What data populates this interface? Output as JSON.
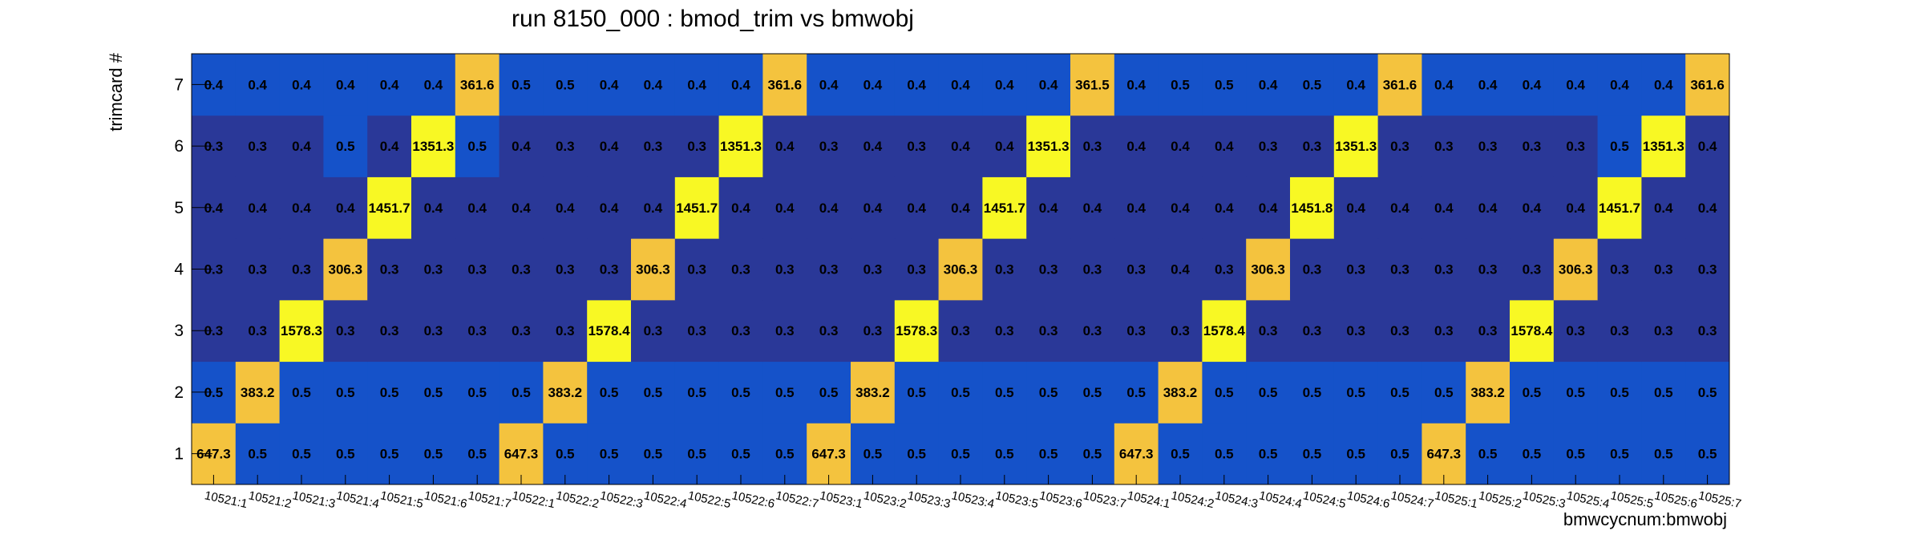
{
  "chart_data": {
    "type": "heatmap",
    "title": "run 8150_000 : bmod_trim vs bmwobj",
    "xlabel": "bmwcycnum:bmwobj",
    "ylabel": "trimcard #",
    "x_categories": [
      "10521:1",
      "10521:2",
      "10521:3",
      "10521:4",
      "10521:5",
      "10521:6",
      "10521:7",
      "10522:1",
      "10522:2",
      "10522:3",
      "10522:4",
      "10522:5",
      "10522:6",
      "10522:7",
      "10523:1",
      "10523:2",
      "10523:3",
      "10523:4",
      "10523:5",
      "10523:6",
      "10523:7",
      "10524:1",
      "10524:2",
      "10524:3",
      "10524:4",
      "10524:5",
      "10524:6",
      "10524:7",
      "10525:1",
      "10525:2",
      "10525:3",
      "10525:4",
      "10525:5",
      "10525:6",
      "10525:7"
    ],
    "y_categories": [
      "1",
      "2",
      "3",
      "4",
      "5",
      "6",
      "7"
    ],
    "values": [
      [
        "647.3",
        "0.5",
        "0.5",
        "0.5",
        "0.5",
        "0.5",
        "0.5",
        "647.3",
        "0.5",
        "0.5",
        "0.5",
        "0.5",
        "0.5",
        "0.5",
        "647.3",
        "0.5",
        "0.5",
        "0.5",
        "0.5",
        "0.5",
        "0.5",
        "647.3",
        "0.5",
        "0.5",
        "0.5",
        "0.5",
        "0.5",
        "0.5",
        "647.3",
        "0.5",
        "0.5",
        "0.5",
        "0.5",
        "0.5",
        "0.5"
      ],
      [
        "0.5",
        "383.2",
        "0.5",
        "0.5",
        "0.5",
        "0.5",
        "0.5",
        "0.5",
        "383.2",
        "0.5",
        "0.5",
        "0.5",
        "0.5",
        "0.5",
        "0.5",
        "383.2",
        "0.5",
        "0.5",
        "0.5",
        "0.5",
        "0.5",
        "0.5",
        "383.2",
        "0.5",
        "0.5",
        "0.5",
        "0.5",
        "0.5",
        "0.5",
        "383.2",
        "0.5",
        "0.5",
        "0.5",
        "0.5",
        "0.5"
      ],
      [
        "0.3",
        "0.3",
        "1578.3",
        "0.3",
        "0.3",
        "0.3",
        "0.3",
        "0.3",
        "0.3",
        "1578.4",
        "0.3",
        "0.3",
        "0.3",
        "0.3",
        "0.3",
        "0.3",
        "1578.3",
        "0.3",
        "0.3",
        "0.3",
        "0.3",
        "0.3",
        "0.3",
        "1578.4",
        "0.3",
        "0.3",
        "0.3",
        "0.3",
        "0.3",
        "0.3",
        "1578.4",
        "0.3",
        "0.3",
        "0.3",
        "0.3"
      ],
      [
        "0.3",
        "0.3",
        "0.3",
        "306.3",
        "0.3",
        "0.3",
        "0.3",
        "0.3",
        "0.3",
        "0.3",
        "306.3",
        "0.3",
        "0.3",
        "0.3",
        "0.3",
        "0.3",
        "0.3",
        "306.3",
        "0.3",
        "0.3",
        "0.3",
        "0.3",
        "0.4",
        "0.3",
        "306.3",
        "0.3",
        "0.3",
        "0.3",
        "0.3",
        "0.3",
        "0.3",
        "306.3",
        "0.3",
        "0.3",
        "0.3"
      ],
      [
        "0.4",
        "0.4",
        "0.4",
        "0.4",
        "1451.7",
        "0.4",
        "0.4",
        "0.4",
        "0.4",
        "0.4",
        "0.4",
        "1451.7",
        "0.4",
        "0.4",
        "0.4",
        "0.4",
        "0.4",
        "0.4",
        "1451.7",
        "0.4",
        "0.4",
        "0.4",
        "0.4",
        "0.4",
        "0.4",
        "1451.8",
        "0.4",
        "0.4",
        "0.4",
        "0.4",
        "0.4",
        "0.4",
        "1451.7",
        "0.4",
        "0.4"
      ],
      [
        "0.3",
        "0.3",
        "0.4",
        "0.5",
        "0.4",
        "1351.3",
        "0.5",
        "0.4",
        "0.3",
        "0.4",
        "0.3",
        "0.3",
        "1351.3",
        "0.4",
        "0.3",
        "0.4",
        "0.3",
        "0.4",
        "0.4",
        "1351.3",
        "0.3",
        "0.4",
        "0.4",
        "0.4",
        "0.3",
        "0.3",
        "1351.3",
        "0.3",
        "0.3",
        "0.3",
        "0.3",
        "0.3",
        "0.5",
        "1351.3",
        "0.4"
      ],
      [
        "0.4",
        "0.4",
        "0.4",
        "0.4",
        "0.4",
        "0.4",
        "361.6",
        "0.5",
        "0.5",
        "0.4",
        "0.4",
        "0.4",
        "0.4",
        "361.6",
        "0.4",
        "0.4",
        "0.4",
        "0.4",
        "0.4",
        "0.4",
        "361.5",
        "0.4",
        "0.5",
        "0.5",
        "0.4",
        "0.5",
        "0.4",
        "361.6",
        "0.4",
        "0.4",
        "0.4",
        "0.4",
        "0.4",
        "0.4",
        "361.6"
      ]
    ],
    "colors": {
      "dark": "#2a3898",
      "mid": "#1552c9",
      "orange": "#f4c33e",
      "yellow": "#f8f824"
    },
    "grid": false,
    "legend": "none"
  }
}
